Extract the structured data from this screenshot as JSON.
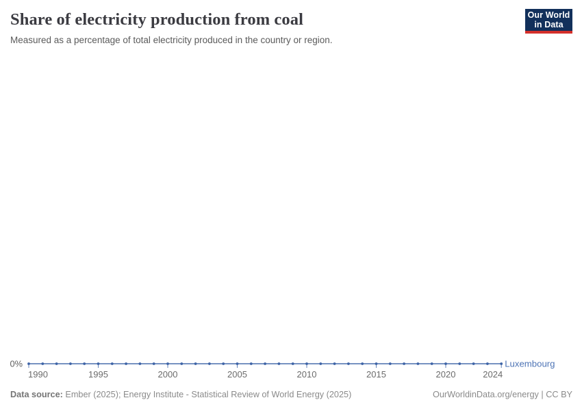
{
  "header": {
    "title": "Share of electricity production from coal",
    "subtitle": "Measured as a percentage of total electricity produced in the country or region.",
    "logo": {
      "line1": "Our World",
      "line2": "in Data",
      "bg_color": "#12305b",
      "accent_color": "#d4302b"
    }
  },
  "chart_data": {
    "type": "line",
    "title": "Share of electricity production from coal",
    "subtitle": "Measured as a percentage of total electricity produced in the country or region.",
    "x": [
      1990,
      1991,
      1992,
      1993,
      1994,
      1995,
      1996,
      1997,
      1998,
      1999,
      2000,
      2001,
      2002,
      2003,
      2004,
      2005,
      2006,
      2007,
      2008,
      2009,
      2010,
      2011,
      2012,
      2013,
      2014,
      2015,
      2016,
      2017,
      2018,
      2019,
      2020,
      2021,
      2022,
      2023,
      2024
    ],
    "series": [
      {
        "name": "Luxembourg",
        "color": "#4e74b5",
        "values": [
          0,
          0,
          0,
          0,
          0,
          0,
          0,
          0,
          0,
          0,
          0,
          0,
          0,
          0,
          0,
          0,
          0,
          0,
          0,
          0,
          0,
          0,
          0,
          0,
          0,
          0,
          0,
          0,
          0,
          0,
          0,
          0,
          0,
          0,
          0
        ]
      }
    ],
    "x_tick_years": [
      1990,
      1995,
      2000,
      2005,
      2010,
      2015,
      2020,
      2024
    ],
    "y_ticks": [
      "0%"
    ],
    "unit": "%",
    "grid": false,
    "legend_position": "end-of-line-label",
    "line_color": "#6282b8",
    "marker_color": "#3d63a6"
  },
  "footer": {
    "source_label": "Data source:",
    "source_text": " Ember (2025); Energy Institute - Statistical Review of World Energy (2025)",
    "link_text": "OurWorldinData.org/energy | CC BY"
  }
}
